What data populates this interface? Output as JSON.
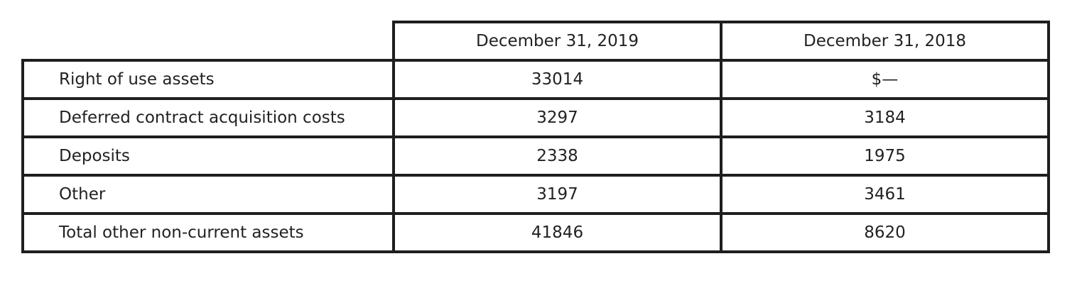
{
  "table": {
    "columns": [
      "",
      "December 31, 2019",
      "December 31, 2018"
    ],
    "rows": [
      {
        "label": "Right of use assets",
        "values": [
          "33014",
          "$—"
        ]
      },
      {
        "label": "Deferred contract acquisition costs",
        "values": [
          "3297",
          "3184"
        ]
      },
      {
        "label": "Deposits",
        "values": [
          "2338",
          "1975"
        ]
      },
      {
        "label": "Other",
        "values": [
          "3197",
          "3461"
        ]
      },
      {
        "label": "Total other non-current assets",
        "values": [
          "41846",
          "8620"
        ]
      }
    ]
  },
  "colors": {
    "border": "#1e1e1e",
    "text": "#222222",
    "background": "#ffffff"
  }
}
